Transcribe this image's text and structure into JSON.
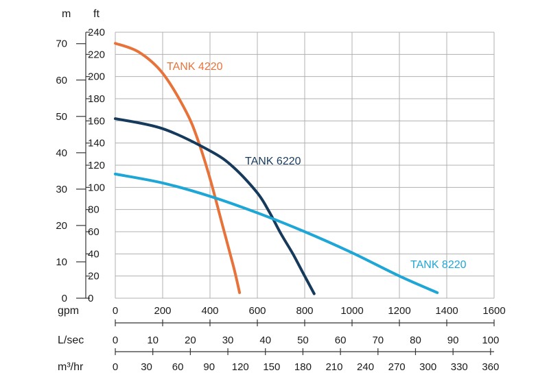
{
  "chart_data": {
    "type": "line",
    "x_unit": "gpm",
    "xlim": [
      0,
      1600
    ],
    "x_ticks": [
      "0",
      "200",
      "400",
      "600",
      "800",
      "1000",
      "1200",
      "1400",
      "1600"
    ],
    "y_unit": "ft",
    "ylim": [
      0,
      240
    ],
    "y_ticks": [
      "0",
      "20",
      "40",
      "60",
      "80",
      "100",
      "120",
      "140",
      "160",
      "180",
      "200",
      "220",
      "240"
    ],
    "y2_unit": "m",
    "y2_ticks": [
      "0",
      "10",
      "20",
      "30",
      "40",
      "50",
      "60",
      "70"
    ],
    "x2_unit": "L/sec",
    "x2_ticks": [
      "0",
      "10",
      "20",
      "30",
      "40",
      "50",
      "60",
      "70",
      "80",
      "90",
      "100"
    ],
    "x3_unit": "m³/hr",
    "x3_ticks": [
      "0",
      "30",
      "60",
      "90",
      "120",
      "150",
      "180",
      "210",
      "240",
      "270",
      "300",
      "330",
      "360"
    ],
    "grid": true,
    "series": [
      {
        "name": "TANK 4220",
        "color": "#e8733a",
        "x": [
          0,
          100,
          200,
          300,
          350,
          400,
          450,
          500,
          525
        ],
        "y": [
          230,
          222,
          203,
          168,
          142,
          108,
          68,
          28,
          5
        ]
      },
      {
        "name": "TANK 6220",
        "color": "#163a5c",
        "x": [
          0,
          200,
          400,
          500,
          600,
          650,
          700,
          750,
          800,
          840
        ],
        "y": [
          162,
          153,
          133,
          118,
          95,
          78,
          58,
          40,
          20,
          4
        ]
      },
      {
        "name": "TANK 8220",
        "color": "#1ea6d6",
        "x": [
          0,
          200,
          400,
          600,
          800,
          1000,
          1200,
          1360
        ],
        "y": [
          112,
          104,
          92,
          77,
          60,
          41,
          20,
          5
        ]
      }
    ]
  }
}
